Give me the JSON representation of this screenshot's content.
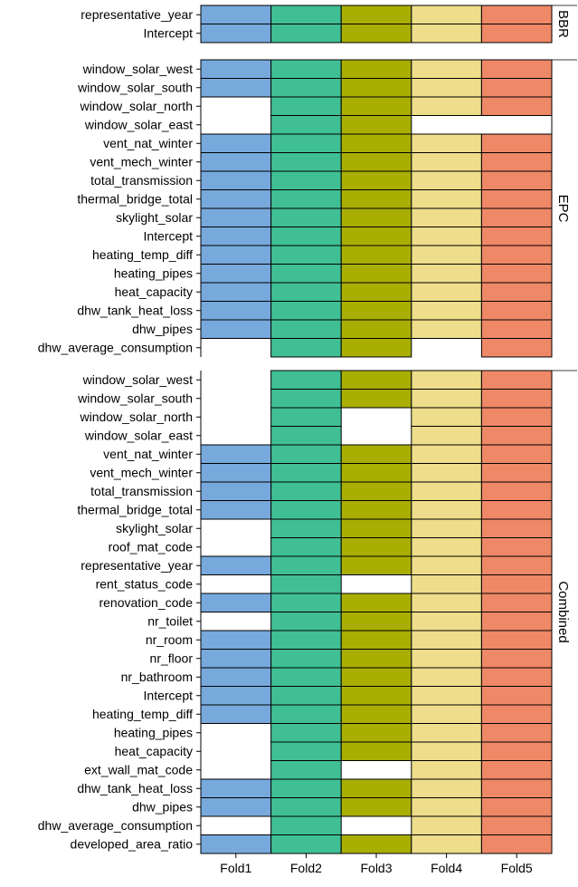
{
  "chart_data": {
    "type": "heatmap",
    "columns": [
      "Fold1",
      "Fold2",
      "Fold3",
      "Fold4",
      "Fold5"
    ],
    "colors": {
      "Fold1": "#77a9dc",
      "Fold2": "#40bf95",
      "Fold3": "#a9ae03",
      "Fold4": "#eedd8a",
      "Fold5": "#ef8867"
    },
    "facets": [
      {
        "label": "BBR",
        "rows": [
          {
            "name": "representative_year",
            "present": [
              1,
              1,
              1,
              1,
              1
            ]
          },
          {
            "name": "Intercept",
            "present": [
              1,
              1,
              1,
              1,
              1
            ]
          }
        ]
      },
      {
        "label": "EPC",
        "rows": [
          {
            "name": "window_solar_west",
            "present": [
              1,
              1,
              1,
              1,
              1
            ]
          },
          {
            "name": "window_solar_south",
            "present": [
              1,
              1,
              1,
              1,
              1
            ]
          },
          {
            "name": "window_solar_north",
            "present": [
              0,
              1,
              1,
              1,
              1
            ]
          },
          {
            "name": "window_solar_east",
            "present": [
              0,
              1,
              1,
              0,
              0
            ]
          },
          {
            "name": "vent_nat_winter",
            "present": [
              1,
              1,
              1,
              1,
              1
            ]
          },
          {
            "name": "vent_mech_winter",
            "present": [
              1,
              1,
              1,
              1,
              1
            ]
          },
          {
            "name": "total_transmission",
            "present": [
              1,
              1,
              1,
              1,
              1
            ]
          },
          {
            "name": "thermal_bridge_total",
            "present": [
              1,
              1,
              1,
              1,
              1
            ]
          },
          {
            "name": "skylight_solar",
            "present": [
              1,
              1,
              1,
              1,
              1
            ]
          },
          {
            "name": "Intercept",
            "present": [
              1,
              1,
              1,
              1,
              1
            ]
          },
          {
            "name": "heating_temp_diff",
            "present": [
              1,
              1,
              1,
              1,
              1
            ]
          },
          {
            "name": "heating_pipes",
            "present": [
              1,
              1,
              1,
              1,
              1
            ]
          },
          {
            "name": "heat_capacity",
            "present": [
              1,
              1,
              1,
              1,
              1
            ]
          },
          {
            "name": "dhw_tank_heat_loss",
            "present": [
              1,
              1,
              1,
              1,
              1
            ]
          },
          {
            "name": "dhw_pipes",
            "present": [
              1,
              1,
              1,
              1,
              1
            ]
          },
          {
            "name": "dhw_average_consumption",
            "present": [
              0,
              1,
              1,
              0,
              1
            ]
          }
        ]
      },
      {
        "label": "Combined",
        "rows": [
          {
            "name": "window_solar_west",
            "present": [
              0,
              1,
              1,
              1,
              1
            ]
          },
          {
            "name": "window_solar_south",
            "present": [
              0,
              1,
              1,
              1,
              1
            ]
          },
          {
            "name": "window_solar_north",
            "present": [
              0,
              1,
              0,
              1,
              1
            ]
          },
          {
            "name": "window_solar_east",
            "present": [
              0,
              1,
              0,
              1,
              1
            ]
          },
          {
            "name": "vent_nat_winter",
            "present": [
              1,
              1,
              1,
              1,
              1
            ]
          },
          {
            "name": "vent_mech_winter",
            "present": [
              1,
              1,
              1,
              1,
              1
            ]
          },
          {
            "name": "total_transmission",
            "present": [
              1,
              1,
              1,
              1,
              1
            ]
          },
          {
            "name": "thermal_bridge_total",
            "present": [
              1,
              1,
              1,
              1,
              1
            ]
          },
          {
            "name": "skylight_solar",
            "present": [
              0,
              1,
              1,
              1,
              1
            ]
          },
          {
            "name": "roof_mat_code",
            "present": [
              0,
              1,
              1,
              1,
              1
            ]
          },
          {
            "name": "representative_year",
            "present": [
              1,
              1,
              1,
              1,
              1
            ]
          },
          {
            "name": "rent_status_code",
            "present": [
              0,
              1,
              0,
              1,
              1
            ]
          },
          {
            "name": "renovation_code",
            "present": [
              1,
              1,
              1,
              1,
              1
            ]
          },
          {
            "name": "nr_toilet",
            "present": [
              0,
              1,
              1,
              1,
              1
            ]
          },
          {
            "name": "nr_room",
            "present": [
              1,
              1,
              1,
              1,
              1
            ]
          },
          {
            "name": "nr_floor",
            "present": [
              1,
              1,
              1,
              1,
              1
            ]
          },
          {
            "name": "nr_bathroom",
            "present": [
              1,
              1,
              1,
              1,
              1
            ]
          },
          {
            "name": "Intercept",
            "present": [
              1,
              1,
              1,
              1,
              1
            ]
          },
          {
            "name": "heating_temp_diff",
            "present": [
              1,
              1,
              1,
              1,
              1
            ]
          },
          {
            "name": "heating_pipes",
            "present": [
              0,
              1,
              1,
              1,
              1
            ]
          },
          {
            "name": "heat_capacity",
            "present": [
              0,
              1,
              1,
              1,
              1
            ]
          },
          {
            "name": "ext_wall_mat_code",
            "present": [
              0,
              1,
              0,
              1,
              1
            ]
          },
          {
            "name": "dhw_tank_heat_loss",
            "present": [
              1,
              1,
              1,
              1,
              1
            ]
          },
          {
            "name": "dhw_pipes",
            "present": [
              1,
              1,
              1,
              1,
              1
            ]
          },
          {
            "name": "dhw_average_consumption",
            "present": [
              0,
              1,
              0,
              1,
              1
            ]
          },
          {
            "name": "developed_area_ratio",
            "present": [
              1,
              1,
              1,
              1,
              1
            ]
          }
        ]
      }
    ]
  }
}
